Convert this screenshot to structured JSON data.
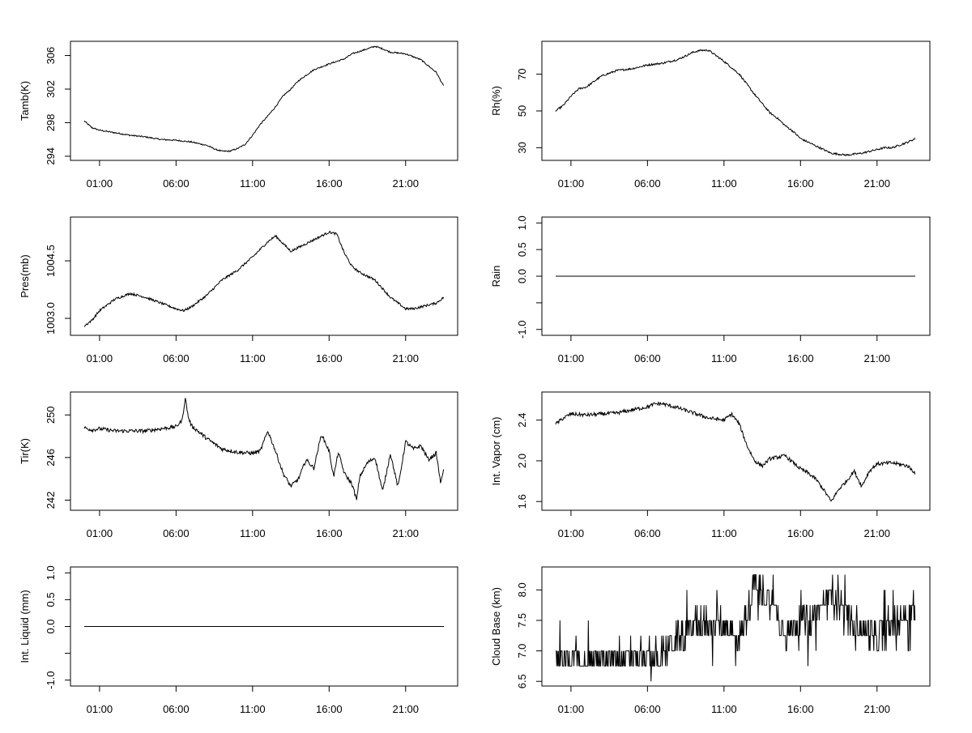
{
  "chart_data": [
    {
      "type": "line",
      "ylabel": "Tamb(K)",
      "x_tick_labels": [
        "01:00",
        "06:00",
        "11:00",
        "16:00",
        "21:00"
      ],
      "x_ticks_hours": [
        1,
        6,
        11,
        16,
        21
      ],
      "xlim": [
        0,
        24
      ],
      "y_ticks": [
        294,
        298,
        302,
        306
      ],
      "y_tick_labels": [
        "294",
        "298",
        "302",
        "306"
      ],
      "ylim": [
        293.7,
        307.5
      ],
      "noise": 0.08,
      "x": [
        0.0,
        0.5,
        1.0,
        2.0,
        3.0,
        4.0,
        5.0,
        6.0,
        7.0,
        8.0,
        8.6,
        9.0,
        9.5,
        10.0,
        10.5,
        11.0,
        11.5,
        12.0,
        12.5,
        13.0,
        13.5,
        14.0,
        15.0,
        16.0,
        17.0,
        17.5,
        18.0,
        18.5,
        19.0,
        19.5,
        20.0,
        20.5,
        21.0,
        22.0,
        23.0,
        23.5
      ],
      "y": [
        298.2,
        297.4,
        297.1,
        296.8,
        296.5,
        296.3,
        296.0,
        295.9,
        295.7,
        295.3,
        294.8,
        294.6,
        294.6,
        294.9,
        295.4,
        296.5,
        297.8,
        298.8,
        299.9,
        301.2,
        302.0,
        303.0,
        304.3,
        305.0,
        305.6,
        306.2,
        306.5,
        306.8,
        307.1,
        306.8,
        306.4,
        306.3,
        306.2,
        305.5,
        304.0,
        302.3
      ]
    },
    {
      "type": "line",
      "ylabel": "Rh(%)",
      "x_tick_labels": [
        "01:00",
        "06:00",
        "11:00",
        "16:00",
        "21:00"
      ],
      "x_ticks_hours": [
        1,
        6,
        11,
        16,
        21
      ],
      "xlim": [
        0,
        24
      ],
      "y_ticks": [
        30,
        50,
        70
      ],
      "y_tick_labels": [
        "30",
        "50",
        "70"
      ],
      "ylim": [
        24,
        87
      ],
      "noise": 0.5,
      "x": [
        0.0,
        0.5,
        1.0,
        1.5,
        2.0,
        3.0,
        4.0,
        5.0,
        6.0,
        7.0,
        8.0,
        9.0,
        9.5,
        10.0,
        10.5,
        11.0,
        12.0,
        13.0,
        14.0,
        14.5,
        15.0,
        15.5,
        16.0,
        17.0,
        17.5,
        18.0,
        19.0,
        20.0,
        21.0,
        21.5,
        22.0,
        23.0,
        23.5
      ],
      "y": [
        50,
        53,
        58,
        62,
        63,
        69,
        72,
        73,
        75,
        76,
        78,
        82,
        83,
        83,
        80,
        77,
        70,
        59,
        49,
        46,
        42,
        39,
        35,
        31,
        29,
        27,
        26,
        27,
        29,
        30,
        30,
        33,
        35
      ]
    },
    {
      "type": "line",
      "ylabel": "Pres(mb)",
      "x_tick_labels": [
        "01:00",
        "06:00",
        "11:00",
        "16:00",
        "21:00"
      ],
      "x_ticks_hours": [
        1,
        6,
        11,
        16,
        21
      ],
      "xlim": [
        0,
        24
      ],
      "y_ticks": [
        1003.0,
        1004.5
      ],
      "y_tick_labels": [
        "1003.0",
        "1004.5"
      ],
      "ylim": [
        1002.6,
        1005.6
      ],
      "noise": 0.03,
      "x": [
        0.0,
        0.5,
        1.0,
        2.0,
        3.0,
        4.0,
        5.0,
        6.0,
        6.5,
        7.0,
        8.0,
        9.0,
        10.0,
        11.0,
        12.0,
        12.5,
        13.0,
        13.5,
        14.0,
        15.0,
        16.0,
        16.5,
        17.0,
        17.5,
        18.0,
        19.0,
        20.0,
        21.0,
        21.5,
        22.0,
        23.0,
        23.5
      ],
      "y": [
        1002.8,
        1002.95,
        1003.2,
        1003.5,
        1003.65,
        1003.55,
        1003.4,
        1003.25,
        1003.2,
        1003.3,
        1003.6,
        1004.0,
        1004.25,
        1004.6,
        1005.0,
        1005.15,
        1004.95,
        1004.75,
        1004.85,
        1005.05,
        1005.25,
        1005.2,
        1004.7,
        1004.35,
        1004.2,
        1004.0,
        1003.55,
        1003.25,
        1003.25,
        1003.3,
        1003.4,
        1003.55
      ]
    },
    {
      "type": "line",
      "ylabel": "Rain",
      "x_tick_labels": [
        "01:00",
        "06:00",
        "11:00",
        "16:00",
        "21:00"
      ],
      "x_ticks_hours": [
        1,
        6,
        11,
        16,
        21
      ],
      "xlim": [
        0,
        24
      ],
      "y_ticks": [
        -1.0,
        -0.5,
        0.0,
        0.5,
        1.0
      ],
      "y_tick_labels": [
        "-1.0",
        "",
        "0.0",
        "0.5",
        "1.0"
      ],
      "ylim": [
        -1.08,
        1.08
      ],
      "noise": 0,
      "x": [
        0.0,
        23.5
      ],
      "y": [
        0,
        0
      ]
    },
    {
      "type": "line",
      "ylabel": "Tir(K)",
      "x_tick_labels": [
        "01:00",
        "06:00",
        "11:00",
        "16:00",
        "21:00"
      ],
      "x_ticks_hours": [
        1,
        6,
        11,
        16,
        21
      ],
      "xlim": [
        0,
        24
      ],
      "y_ticks": [
        242,
        246,
        250
      ],
      "y_tick_labels": [
        "242",
        "246",
        "250"
      ],
      "ylim": [
        241.2,
        252.0
      ],
      "noise": 0.18,
      "x": [
        0.0,
        0.5,
        1.0,
        2.0,
        3.0,
        4.0,
        5.0,
        6.0,
        6.4,
        6.6,
        6.8,
        7.0,
        8.0,
        9.0,
        10.0,
        11.0,
        11.5,
        12.0,
        12.5,
        13.0,
        13.5,
        14.0,
        14.5,
        15.0,
        15.5,
        16.0,
        16.3,
        16.6,
        17.0,
        17.5,
        17.8,
        18.0,
        18.5,
        19.0,
        19.5,
        20.0,
        20.5,
        21.0,
        21.5,
        22.0,
        22.5,
        23.0,
        23.3,
        23.5
      ],
      "y": [
        248.8,
        248.6,
        248.7,
        248.5,
        248.5,
        248.5,
        248.7,
        248.9,
        249.5,
        251.6,
        249.8,
        249.0,
        247.8,
        246.8,
        246.5,
        246.4,
        246.6,
        248.5,
        246.6,
        244.5,
        243.3,
        244.0,
        245.8,
        245.0,
        248.2,
        246.6,
        244.2,
        246.5,
        244.5,
        243.5,
        242.0,
        244.2,
        245.5,
        246.0,
        242.8,
        246.4,
        243.2,
        247.5,
        246.8,
        247.1,
        245.8,
        246.4,
        243.5,
        245.2
      ]
    },
    {
      "type": "line",
      "ylabel": "Int. Vapor (cm)",
      "x_tick_labels": [
        "01:00",
        "06:00",
        "11:00",
        "16:00",
        "21:00"
      ],
      "x_ticks_hours": [
        1,
        6,
        11,
        16,
        21
      ],
      "xlim": [
        0,
        24
      ],
      "y_ticks": [
        1.6,
        2.0,
        2.4
      ],
      "y_tick_labels": [
        "1.6",
        "2.0",
        "2.4"
      ],
      "ylim": [
        1.53,
        2.66
      ],
      "noise": 0.018,
      "x": [
        0.0,
        0.5,
        1.0,
        2.0,
        3.0,
        4.0,
        5.0,
        6.0,
        6.5,
        7.0,
        8.0,
        9.0,
        10.0,
        11.0,
        11.5,
        12.0,
        12.5,
        13.0,
        13.5,
        14.0,
        15.0,
        16.0,
        16.5,
        17.0,
        17.5,
        18.0,
        18.5,
        19.0,
        19.5,
        20.0,
        20.5,
        21.0,
        22.0,
        23.0,
        23.5
      ],
      "y": [
        2.36,
        2.42,
        2.46,
        2.45,
        2.46,
        2.47,
        2.5,
        2.53,
        2.56,
        2.56,
        2.52,
        2.47,
        2.42,
        2.4,
        2.46,
        2.36,
        2.15,
        2.0,
        1.95,
        2.02,
        2.05,
        1.92,
        1.88,
        1.82,
        1.72,
        1.6,
        1.72,
        1.8,
        1.9,
        1.75,
        1.9,
        1.97,
        1.98,
        1.95,
        1.88
      ]
    },
    {
      "type": "line",
      "ylabel": "Int. Liquid (mm)",
      "x_tick_labels": [
        "01:00",
        "06:00",
        "11:00",
        "16:00",
        "21:00"
      ],
      "x_ticks_hours": [
        1,
        6,
        11,
        16,
        21
      ],
      "xlim": [
        0,
        24
      ],
      "y_ticks": [
        -1.0,
        -0.5,
        0.0,
        0.5,
        1.0
      ],
      "y_tick_labels": [
        "-1.0",
        "",
        "0.0",
        "0.5",
        "1.0"
      ],
      "ylim": [
        -1.08,
        1.08
      ],
      "noise": 0,
      "x": [
        0.0,
        23.5
      ],
      "y": [
        0,
        0
      ]
    },
    {
      "type": "line",
      "ylabel": "Cloud Base (km)",
      "x_tick_labels": [
        "01:00",
        "06:00",
        "11:00",
        "16:00",
        "21:00"
      ],
      "x_ticks_hours": [
        1,
        6,
        11,
        16,
        21
      ],
      "xlim": [
        0,
        24
      ],
      "y_ticks": [
        6.5,
        7.0,
        7.5,
        8.0
      ],
      "y_tick_labels": [
        "6.5",
        "7.0",
        "7.5",
        "8.0"
      ],
      "ylim": [
        6.45,
        8.35
      ],
      "noise": 0,
      "x": [
        0.0,
        2.0,
        4.0,
        6.0,
        7.0,
        8.0,
        9.0,
        10.0,
        11.0,
        12.0,
        12.5,
        13.0,
        14.0,
        15.0,
        16.0,
        17.0,
        17.5,
        18.0,
        19.0,
        20.0,
        21.0,
        22.0,
        23.0,
        23.5
      ],
      "y": [
        6.9,
        6.85,
        6.85,
        6.9,
        6.95,
        7.2,
        7.4,
        7.45,
        7.45,
        7.2,
        7.6,
        8.1,
        7.8,
        7.3,
        7.5,
        7.6,
        7.8,
        7.9,
        7.6,
        7.4,
        7.2,
        7.4,
        7.6,
        7.7
      ]
    }
  ]
}
